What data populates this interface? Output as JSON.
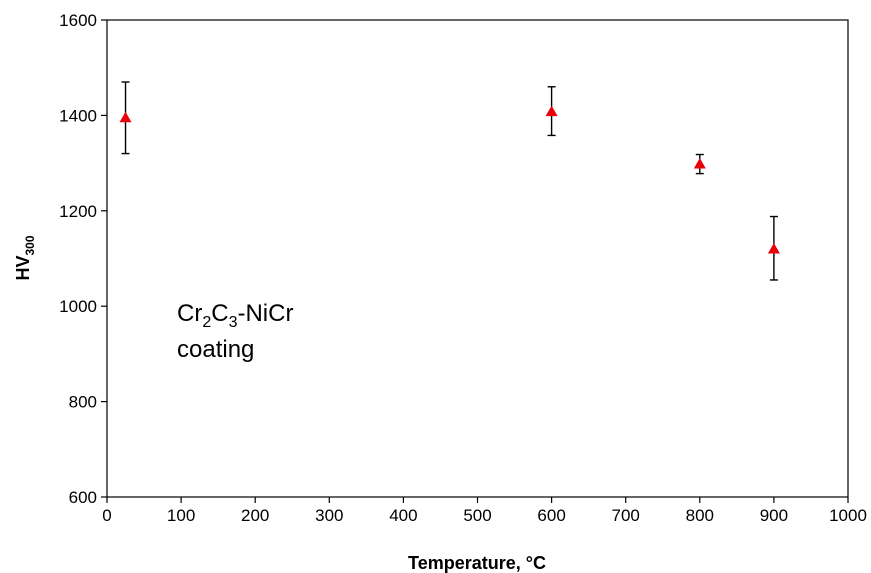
{
  "chart_data": {
    "type": "scatter",
    "title": "",
    "xlabel": "Temperature, °C",
    "ylabel": {
      "base": "HV",
      "subscript": "300"
    },
    "xlim": [
      0,
      1000
    ],
    "ylim": [
      600,
      1600
    ],
    "xticks": [
      "0",
      "100",
      "200",
      "300",
      "400",
      "500",
      "600",
      "700",
      "800",
      "900",
      "1000"
    ],
    "yticks": [
      "600",
      "800",
      "1000",
      "1200",
      "1400",
      "1600"
    ],
    "grid": false,
    "marker": "triangle",
    "marker_color": "#e8000b",
    "annotation": {
      "line1": {
        "p1": "Cr",
        "s1": "2",
        "p2": "C",
        "s2": "3",
        "p3": "-NiCr"
      },
      "line2": "coating"
    },
    "points": [
      {
        "x": 25,
        "y": 1395,
        "err_low": 1320,
        "err_high": 1470
      },
      {
        "x": 600,
        "y": 1408,
        "err_low": 1358,
        "err_high": 1460
      },
      {
        "x": 800,
        "y": 1298,
        "err_low": 1278,
        "err_high": 1318
      },
      {
        "x": 900,
        "y": 1120,
        "err_low": 1055,
        "err_high": 1188
      }
    ]
  }
}
